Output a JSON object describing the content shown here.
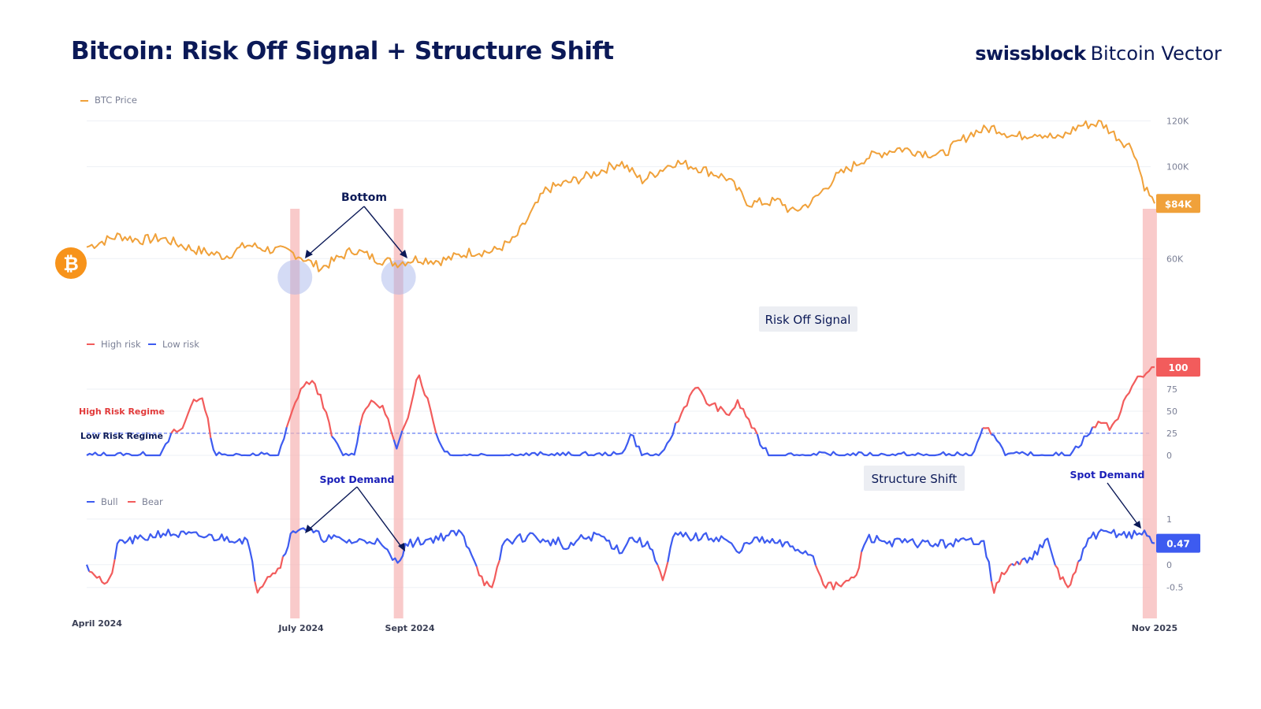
{
  "title": "Bitcoin: Risk Off Signal + Structure Shift",
  "brand": {
    "name": "swissblock",
    "product": "Bitcoin Vector"
  },
  "colors": {
    "price": "#f0a13a",
    "high_risk": "#f25c5c",
    "low_risk": "#3d5bf0",
    "bull": "#3d5bf0",
    "bear": "#f25c5c",
    "highlight": "#f7b3b3",
    "navy": "#0b1957",
    "bitcoin_badge": "#f7931a"
  },
  "annotations": {
    "bottom": "Bottom",
    "risk_off": "Risk Off Signal",
    "structure_shift": "Structure Shift",
    "spot_demand_1": "Spot Demand",
    "spot_demand_2": "Spot Demand",
    "high_regime": "High Risk Regime",
    "low_regime": "Low Risk Regime"
  },
  "x_axis": {
    "labels": [
      "April 2024",
      "July 2024",
      "Sept 2024",
      "Nov 2025"
    ]
  },
  "chart_data": [
    {
      "type": "line",
      "legend": [
        "BTC Price"
      ],
      "yunit": "USD",
      "ylim": [
        45000,
        128000
      ],
      "yticks": [
        {
          "v": 60000,
          "label": "60K"
        },
        {
          "v": 100000,
          "label": "100K"
        },
        {
          "v": 120000,
          "label": "120K"
        }
      ],
      "last_label": "$84K",
      "anchors": [
        [
          0,
          65000
        ],
        [
          0.03,
          70000
        ],
        [
          0.05,
          68000
        ],
        [
          0.07,
          69000
        ],
        [
          0.1,
          64000
        ],
        [
          0.13,
          61000
        ],
        [
          0.15,
          66000
        ],
        [
          0.17,
          64000
        ],
        [
          0.19,
          63000
        ],
        [
          0.2,
          61000
        ],
        [
          0.21,
          58000
        ],
        [
          0.22,
          56000
        ],
        [
          0.25,
          64000
        ],
        [
          0.27,
          60000
        ],
        [
          0.29,
          58000
        ],
        [
          0.31,
          60000
        ],
        [
          0.33,
          59000
        ],
        [
          0.3,
          56000
        ],
        [
          0.34,
          60000
        ],
        [
          0.36,
          63000
        ],
        [
          0.38,
          63000
        ],
        [
          0.4,
          68000
        ],
        [
          0.41,
          75000
        ],
        [
          0.43,
          90000
        ],
        [
          0.47,
          96000
        ],
        [
          0.5,
          102000
        ],
        [
          0.52,
          94000
        ],
        [
          0.55,
          102000
        ],
        [
          0.57,
          100000
        ],
        [
          0.6,
          95000
        ],
        [
          0.62,
          84000
        ],
        [
          0.65,
          85000
        ],
        [
          0.66,
          80000
        ],
        [
          0.68,
          85000
        ],
        [
          0.7,
          95000
        ],
        [
          0.73,
          104000
        ],
        [
          0.76,
          108000
        ],
        [
          0.8,
          105000
        ],
        [
          0.83,
          115000
        ],
        [
          0.85,
          117000
        ],
        [
          0.87,
          113000
        ],
        [
          0.89,
          115000
        ],
        [
          0.91,
          112000
        ],
        [
          0.93,
          118000
        ],
        [
          0.95,
          119000
        ],
        [
          0.97,
          111000
        ],
        [
          0.98,
          108000
        ],
        [
          0.99,
          92000
        ],
        [
          1,
          84000
        ]
      ]
    },
    {
      "type": "line",
      "legend": [
        "High risk",
        "Low risk"
      ],
      "ylim": [
        0,
        100
      ],
      "yticks": [
        0,
        25,
        50,
        75
      ],
      "threshold": 25,
      "last_label": "100",
      "anchors": [
        [
          0,
          0
        ],
        [
          0.07,
          0
        ],
        [
          0.08,
          25
        ],
        [
          0.09,
          30
        ],
        [
          0.1,
          65
        ],
        [
          0.11,
          60
        ],
        [
          0.12,
          0
        ],
        [
          0.18,
          0
        ],
        [
          0.19,
          40
        ],
        [
          0.2,
          75
        ],
        [
          0.21,
          85
        ],
        [
          0.22,
          65
        ],
        [
          0.23,
          20
        ],
        [
          0.24,
          0
        ],
        [
          0.25,
          0
        ],
        [
          0.26,
          55
        ],
        [
          0.27,
          60
        ],
        [
          0.28,
          50
        ],
        [
          0.29,
          5
        ],
        [
          0.3,
          40
        ],
        [
          0.31,
          95
        ],
        [
          0.32,
          60
        ],
        [
          0.33,
          15
        ],
        [
          0.34,
          0
        ],
        [
          0.5,
          0
        ],
        [
          0.51,
          25
        ],
        [
          0.52,
          0
        ],
        [
          0.54,
          0
        ],
        [
          0.55,
          30
        ],
        [
          0.57,
          80
        ],
        [
          0.58,
          60
        ],
        [
          0.59,
          55
        ],
        [
          0.6,
          45
        ],
        [
          0.61,
          60
        ],
        [
          0.62,
          40
        ],
        [
          0.63,
          15
        ],
        [
          0.64,
          0
        ],
        [
          0.72,
          0
        ],
        [
          0.83,
          0
        ],
        [
          0.84,
          30
        ],
        [
          0.85,
          25
        ],
        [
          0.86,
          0
        ],
        [
          0.9,
          0
        ],
        [
          0.92,
          0
        ],
        [
          0.95,
          40
        ],
        [
          0.96,
          30
        ],
        [
          0.97,
          55
        ],
        [
          0.98,
          85
        ],
        [
          1,
          100
        ]
      ]
    },
    {
      "type": "line",
      "legend": [
        "Bull",
        "Bear"
      ],
      "ylim": [
        -0.85,
        1.05
      ],
      "yticks": [
        {
          "v": -0.5,
          "label": "-0.5"
        },
        {
          "v": 0,
          "label": "0"
        },
        {
          "v": 1,
          "label": "1"
        }
      ],
      "last_label": "0.47",
      "anchors": [
        [
          0,
          0
        ],
        [
          0.02,
          -0.5
        ],
        [
          0.03,
          0.5
        ],
        [
          0.05,
          0.55
        ],
        [
          0.07,
          0.7
        ],
        [
          0.09,
          0.65
        ],
        [
          0.12,
          0.6
        ],
        [
          0.15,
          0.55
        ],
        [
          0.16,
          -0.55
        ],
        [
          0.17,
          -0.2
        ],
        [
          0.18,
          -0.1
        ],
        [
          0.19,
          0.6
        ],
        [
          0.2,
          0.85
        ],
        [
          0.22,
          0.6
        ],
        [
          0.25,
          0.5
        ],
        [
          0.27,
          0.55
        ],
        [
          0.29,
          0.05
        ],
        [
          0.3,
          0.45
        ],
        [
          0.32,
          0.55
        ],
        [
          0.35,
          0.7
        ],
        [
          0.36,
          0.3
        ],
        [
          0.37,
          -0.3
        ],
        [
          0.38,
          -0.6
        ],
        [
          0.39,
          0.5
        ],
        [
          0.41,
          0.6
        ],
        [
          0.42,
          0.65
        ],
        [
          0.43,
          0.45
        ],
        [
          0.44,
          0.55
        ],
        [
          0.45,
          0.3
        ],
        [
          0.46,
          0.55
        ],
        [
          0.48,
          0.65
        ],
        [
          0.5,
          0.3
        ],
        [
          0.51,
          0.6
        ],
        [
          0.53,
          0.35
        ],
        [
          0.54,
          -0.4
        ],
        [
          0.55,
          0.65
        ],
        [
          0.57,
          0.6
        ],
        [
          0.59,
          0.6
        ],
        [
          0.6,
          0.55
        ],
        [
          0.61,
          0.2
        ],
        [
          0.62,
          0.55
        ],
        [
          0.64,
          0.5
        ],
        [
          0.66,
          0.4
        ],
        [
          0.68,
          0.2
        ],
        [
          0.69,
          -0.4
        ],
        [
          0.7,
          -0.5
        ],
        [
          0.72,
          -0.3
        ],
        [
          0.73,
          0.6
        ],
        [
          0.75,
          0.5
        ],
        [
          0.8,
          0.45
        ],
        [
          0.84,
          0.55
        ],
        [
          0.85,
          -0.6
        ],
        [
          0.86,
          -0.1
        ],
        [
          0.88,
          0.1
        ],
        [
          0.9,
          0.5
        ],
        [
          0.91,
          -0.2
        ],
        [
          0.92,
          -0.5
        ],
        [
          0.94,
          0.65
        ],
        [
          0.96,
          0.7
        ],
        [
          0.98,
          0.65
        ],
        [
          0.99,
          0.7
        ],
        [
          1,
          0.47
        ]
      ]
    }
  ]
}
